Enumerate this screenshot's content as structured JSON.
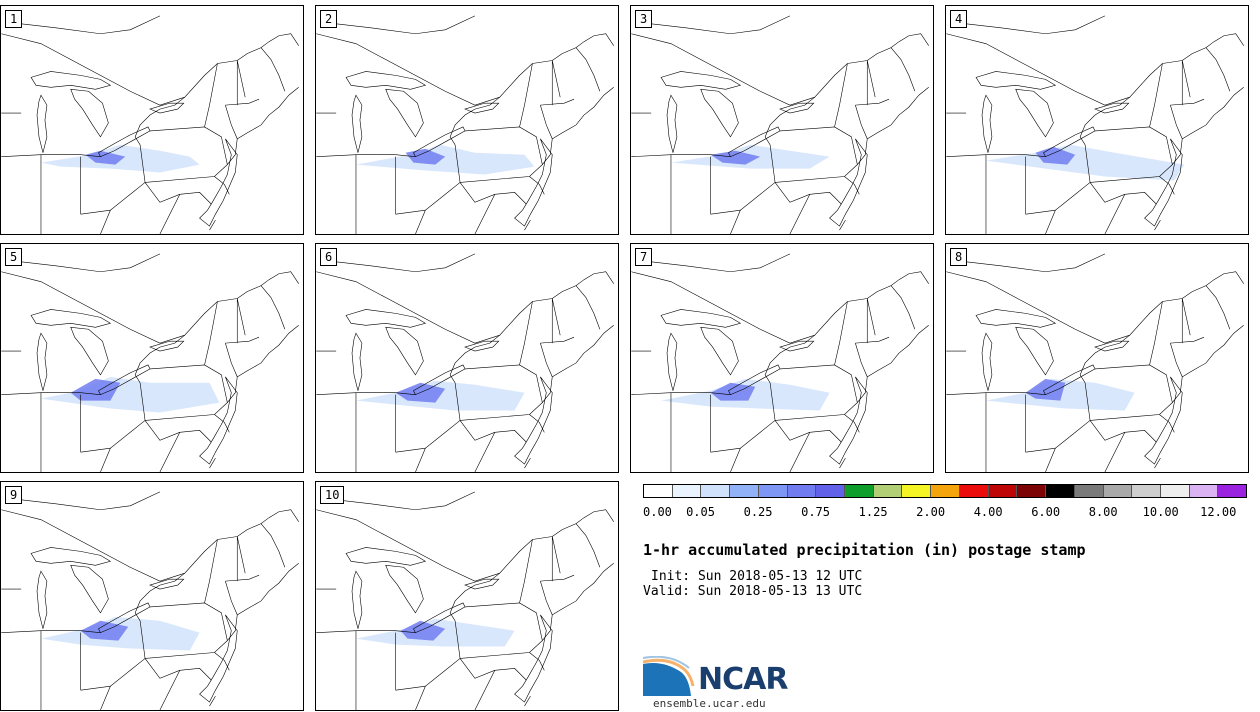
{
  "panels": [
    {
      "label": "1"
    },
    {
      "label": "2"
    },
    {
      "label": "3"
    },
    {
      "label": "4"
    },
    {
      "label": "5"
    },
    {
      "label": "6"
    },
    {
      "label": "7"
    },
    {
      "label": "8"
    },
    {
      "label": "9"
    },
    {
      "label": "10"
    }
  ],
  "colorbar": {
    "colors": [
      "#ffffff",
      "#eaf4fe",
      "#cfe1fb",
      "#91b2f7",
      "#7f97f4",
      "#707cf0",
      "#6161ea",
      "#0e9e2b",
      "#b2cf75",
      "#f5f526",
      "#f4a40c",
      "#ea0d0b",
      "#bf0606",
      "#7d0404",
      "#000000",
      "#7a7a7a",
      "#a9a9a9",
      "#cecece",
      "#eeeeee",
      "#dcb3f2",
      "#9b22de"
    ],
    "tick_labels": [
      "0.00",
      "0.05",
      "0.25",
      "0.75",
      "1.25",
      "2.00",
      "4.00",
      "6.00",
      "8.00",
      "10.00",
      "12.00"
    ]
  },
  "title": "1-hr accumulated precipitation (in) postage stamp",
  "init": "Init: Sun 2018-05-13 12 UTC",
  "valid": "Valid: Sun 2018-05-13 13 UTC",
  "logo": {
    "text": "NCAR",
    "url": "ensemble.ucar.edu",
    "brand_color": "#1a3f6e"
  }
}
